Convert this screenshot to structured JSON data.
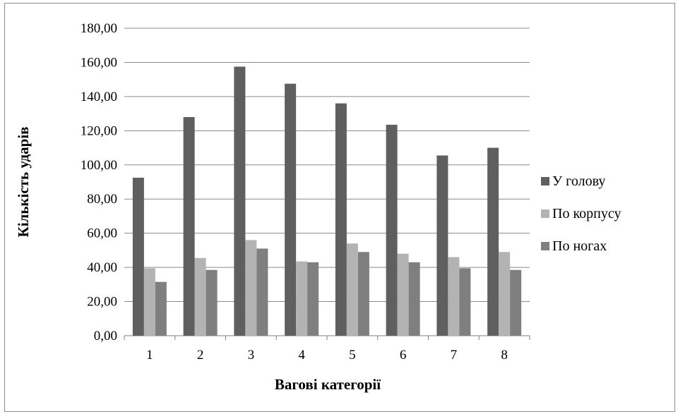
{
  "chart_data": {
    "type": "bar",
    "title": "",
    "xlabel": "Вагові категорії",
    "ylabel": "Кількість ударів",
    "ylim": [
      0,
      180
    ],
    "yticks": [
      "0,00",
      "20,00",
      "40,00",
      "60,00",
      "80,00",
      "100,00",
      "120,00",
      "140,00",
      "160,00",
      "180,00"
    ],
    "ytick_values": [
      0,
      20,
      40,
      60,
      80,
      100,
      120,
      140,
      160,
      180
    ],
    "categories": [
      "1",
      "2",
      "3",
      "4",
      "5",
      "6",
      "7",
      "8"
    ],
    "grid": true,
    "legend_position": "right",
    "series": [
      {
        "name": "У голову",
        "color": "#5f5f5f",
        "values": [
          92.5,
          128,
          157.5,
          147.5,
          136,
          123.5,
          105.5,
          110
        ]
      },
      {
        "name": "По корпусу",
        "color": "#b3b3b3",
        "values": [
          39.5,
          45.5,
          56,
          43.5,
          54,
          48,
          46,
          49
        ]
      },
      {
        "name": "По ногах",
        "color": "#7f7f7f",
        "values": [
          31.5,
          38.5,
          51,
          43,
          49,
          43,
          39.5,
          38.5
        ]
      }
    ]
  }
}
